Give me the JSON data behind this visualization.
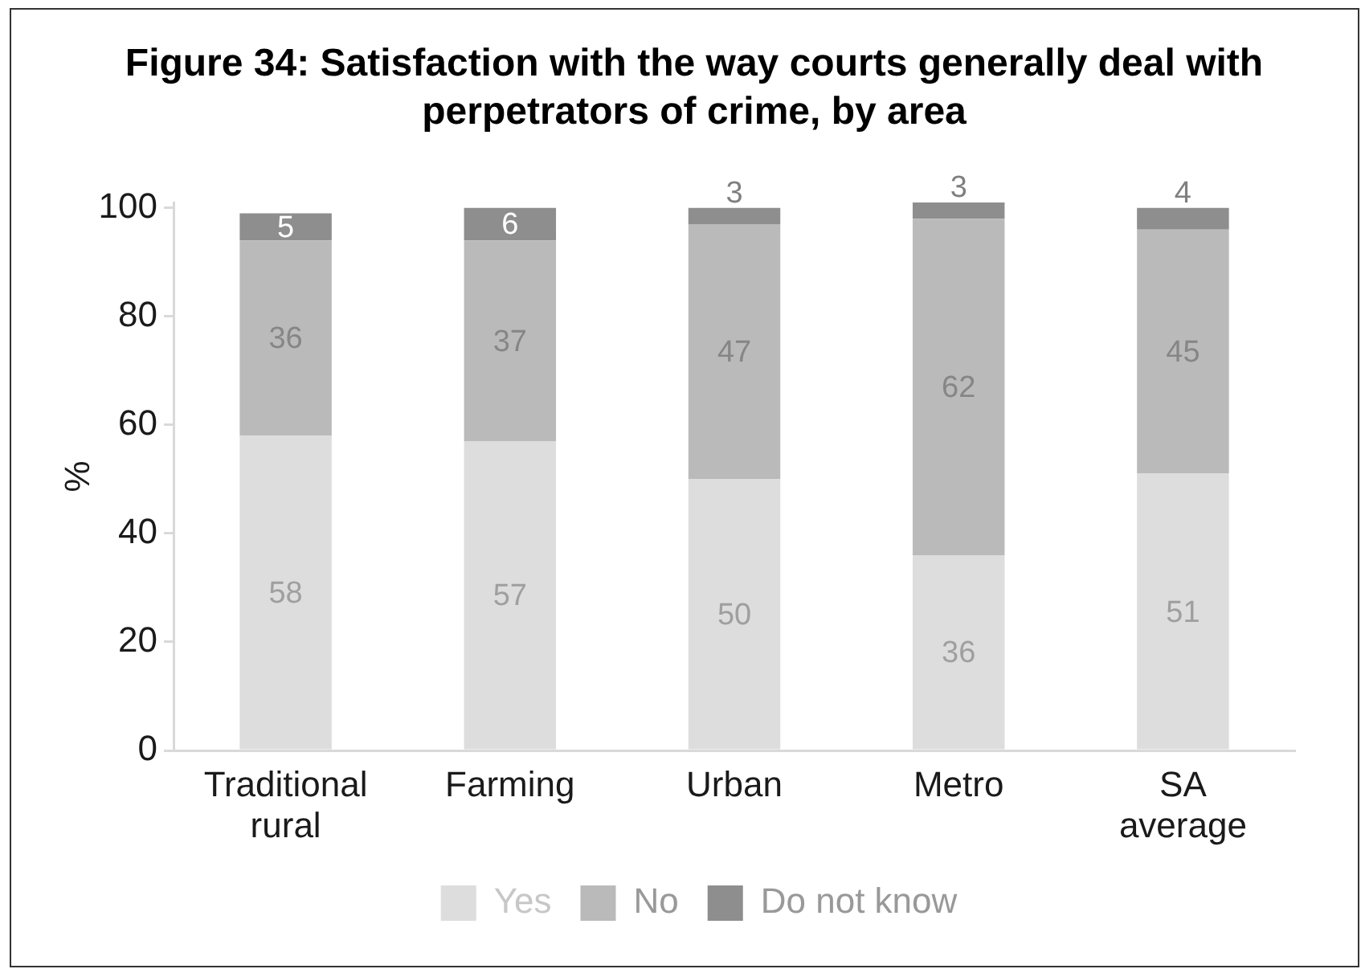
{
  "chart_data": {
    "type": "bar",
    "title": "Figure 34: Satisfaction with the way courts generally deal with perpetrators of crime, by area",
    "ylabel": "%",
    "categories": [
      "Traditional rural",
      "Farming",
      "Urban",
      "Metro",
      "SA average"
    ],
    "stacked": true,
    "series": [
      {
        "name": "Yes",
        "color": "#dddddd",
        "values": [
          58,
          57,
          50,
          36,
          51
        ]
      },
      {
        "name": "No",
        "color": "#bababa",
        "values": [
          36,
          37,
          47,
          62,
          45
        ]
      },
      {
        "name": "Do not know",
        "color": "#8e8e8e",
        "values": [
          5,
          6,
          3,
          3,
          4
        ]
      }
    ],
    "ylim": [
      0,
      101
    ],
    "yticks": [
      0,
      20,
      40,
      60,
      80,
      100
    ],
    "legend": "bottom",
    "data_labels": true
  }
}
